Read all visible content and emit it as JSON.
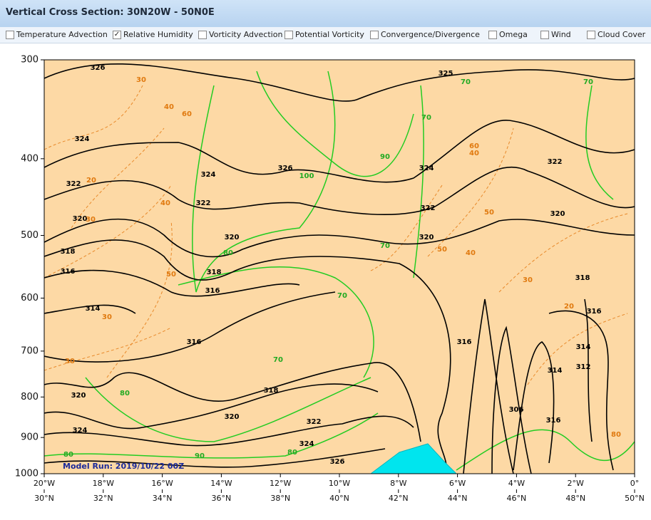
{
  "window": {
    "title": "Vertical Cross Section: 30N20W - 50N0E"
  },
  "options": [
    {
      "label": "Temperature Advection",
      "checked": false
    },
    {
      "label": "Relative Humidity",
      "checked": true
    },
    {
      "label": "Vorticity Advection",
      "checked": false
    },
    {
      "label": "Potential Vorticity",
      "checked": false
    },
    {
      "label": "Convergence/Divergence",
      "checked": false
    },
    {
      "label": "Omega",
      "checked": false
    },
    {
      "label": "Wind",
      "checked": false
    },
    {
      "label": "Cloud Cover",
      "checked": false
    }
  ],
  "chart": {
    "ylim": [
      300,
      1000
    ],
    "log_y": true,
    "yticks": [
      300,
      400,
      500,
      600,
      700,
      800,
      900,
      1000
    ],
    "lon_lim": [
      -20,
      0
    ],
    "lon_ticks": [
      {
        "value": -20,
        "label": "20°W"
      },
      {
        "value": -18,
        "label": "18°W"
      },
      {
        "value": -16,
        "label": "16°W"
      },
      {
        "value": -14,
        "label": "14°W"
      },
      {
        "value": -12,
        "label": "12°W"
      },
      {
        "value": -10,
        "label": "10°W"
      },
      {
        "value": -8,
        "label": "8°W"
      },
      {
        "value": -6,
        "label": "6°W"
      },
      {
        "value": -4,
        "label": "4°W"
      },
      {
        "value": -2,
        "label": "2°W"
      },
      {
        "value": 0,
        "label": "0°"
      }
    ],
    "lat_lim": [
      30,
      50
    ],
    "lat_ticks": [
      {
        "value": 30,
        "label": "30°N"
      },
      {
        "value": 32,
        "label": "32°N"
      },
      {
        "value": 34,
        "label": "34°N"
      },
      {
        "value": 36,
        "label": "36°N"
      },
      {
        "value": 38,
        "label": "38°N"
      },
      {
        "value": 40,
        "label": "40°N"
      },
      {
        "value": 42,
        "label": "42°N"
      },
      {
        "value": 44,
        "label": "44°N"
      },
      {
        "value": 46,
        "label": "46°N"
      },
      {
        "value": 48,
        "label": "48°N"
      },
      {
        "value": 50,
        "label": "50°N"
      }
    ],
    "model_run": "Model Run: 2019/10/22 00Z",
    "isentrope_labels": [
      326,
      324,
      322,
      320,
      318,
      316,
      314,
      326,
      324,
      322,
      320,
      318,
      316,
      316,
      318,
      320,
      322,
      324,
      326,
      325,
      324,
      322,
      320,
      318,
      320,
      322,
      316,
      314,
      312,
      314,
      306,
      316,
      316,
      324,
      320
    ],
    "green_labels": [
      100,
      80,
      80,
      80,
      90,
      80,
      70,
      70,
      70,
      70,
      70,
      70,
      90
    ],
    "orange_labels": [
      30,
      40,
      60,
      20,
      30,
      40,
      50,
      30,
      30,
      50,
      40,
      30,
      20,
      40,
      60,
      50,
      80
    ]
  }
}
